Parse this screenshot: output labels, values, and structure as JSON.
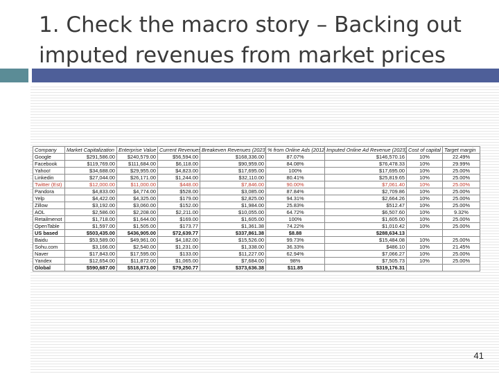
{
  "slide": {
    "title": "1.  Check the macro story – Backing out imputed revenues from market prices",
    "page_number": "41"
  },
  "table": {
    "headers": [
      "Company",
      "Market Capitalization",
      "Enterprise Value",
      "Current Revenues",
      "Breakeven Revenues (2023)",
      "% from Online Ads (2012)",
      "Imputed Online Ad Revenue (2023)",
      "Cost of capital",
      "Target margin"
    ],
    "rows": [
      {
        "cells": [
          "Google",
          "$291,586.00",
          "$240,579.00",
          "$56,594.00",
          "$168,336.00",
          "87.07%",
          "$146,570.16",
          "10%",
          "22.49%"
        ],
        "style": ""
      },
      {
        "cells": [
          "Facebook",
          "$119,769.00",
          "$111,684.00",
          "$6,118.00",
          "$90,959.00",
          "84.08%",
          "$76,478.33",
          "10%",
          "29.99%"
        ],
        "style": ""
      },
      {
        "cells": [
          "Yahoo!",
          "$34,688.00",
          "$29,955.00",
          "$4,823.00",
          "$17,695.00",
          "100%",
          "$17,695.00",
          "10%",
          "25.00%"
        ],
        "style": ""
      },
      {
        "cells": [
          "Linkedin",
          "$27,044.00",
          "$26,171.00",
          "$1,244.00",
          "$32,110.00",
          "80.41%",
          "$25,819.65",
          "10%",
          "25.00%"
        ],
        "style": ""
      },
      {
        "cells": [
          "Twitter (Est)",
          "$12,000.00",
          "$11,000.00",
          "$448.00",
          "$7,846.00",
          "90.00%",
          "$7,061.40",
          "10%",
          "25.00%"
        ],
        "style": "red"
      },
      {
        "cells": [
          "Pandora",
          "$4,833.00",
          "$4,774.00",
          "$528.00",
          "$3,085.00",
          "87.84%",
          "$2,709.86",
          "10%",
          "25.00%"
        ],
        "style": ""
      },
      {
        "cells": [
          "Yelp",
          "$4,422.00",
          "$4,325.00",
          "$179.00",
          "$2,825.00",
          "94.31%",
          "$2,664.26",
          "10%",
          "25.00%"
        ],
        "style": ""
      },
      {
        "cells": [
          "Zillow",
          "$3,192.00",
          "$3,060.00",
          "$152.00",
          "$1,984.00",
          "25.83%",
          "$512.47",
          "10%",
          "25.00%"
        ],
        "style": ""
      },
      {
        "cells": [
          "AOL",
          "$2,586.00",
          "$2,208.00",
          "$2,211.00",
          "$10,055.00",
          "64.72%",
          "$6,507.60",
          "10%",
          "9.32%"
        ],
        "style": ""
      },
      {
        "cells": [
          "Retailmenot",
          "$1,718.00",
          "$1,644.00",
          "$169.00",
          "$1,605.00",
          "100%",
          "$1,605.00",
          "10%",
          "25.00%"
        ],
        "style": ""
      },
      {
        "cells": [
          "OpenTable",
          "$1,597.00",
          "$1,505.00",
          "$173.77",
          "$1,361.38",
          "74.22%",
          "$1,010.42",
          "10%",
          "25.00%"
        ],
        "style": ""
      },
      {
        "cells": [
          "US based",
          "$503,435.00",
          "$436,905.00",
          "$72,639.77",
          "$337,861.38",
          "$8.88",
          "$288,634.13",
          "",
          ""
        ],
        "style": "bold"
      },
      {
        "cells": [
          "Baidu",
          "$53,589.00",
          "$49,961.00",
          "$4,182.00",
          "$15,526.00",
          "99.73%",
          "$15,484.08",
          "10%",
          "25.00%"
        ],
        "style": ""
      },
      {
        "cells": [
          "Sohu.com",
          "$3,166.00",
          "$2,540.00",
          "$1,231.00",
          "$1,338.00",
          "36.33%",
          "$486.10",
          "10%",
          "21.45%"
        ],
        "style": ""
      },
      {
        "cells": [
          "Naver",
          "$17,843.00",
          "$17,595.00",
          "$133.00",
          "$11,227.00",
          "62.94%",
          "$7,066.27",
          "10%",
          "25.00%"
        ],
        "style": ""
      },
      {
        "cells": [
          "Yandex",
          "$12,654.00",
          "$11,872.00",
          "$1,065.00",
          "$7,684.00",
          "98%",
          "$7,505.73",
          "10%",
          "25.00%"
        ],
        "style": ""
      },
      {
        "cells": [
          "Global",
          "$590,687.00",
          "$518,873.00",
          "$79,250.77",
          "$373,636.38",
          "$11.85",
          "$319,176.31",
          "",
          ""
        ],
        "style": "bold"
      }
    ]
  },
  "colors": {
    "accent_teal": "#5b8c96",
    "accent_blue": "#4e5f99",
    "highlight_red": "#c0392b"
  }
}
